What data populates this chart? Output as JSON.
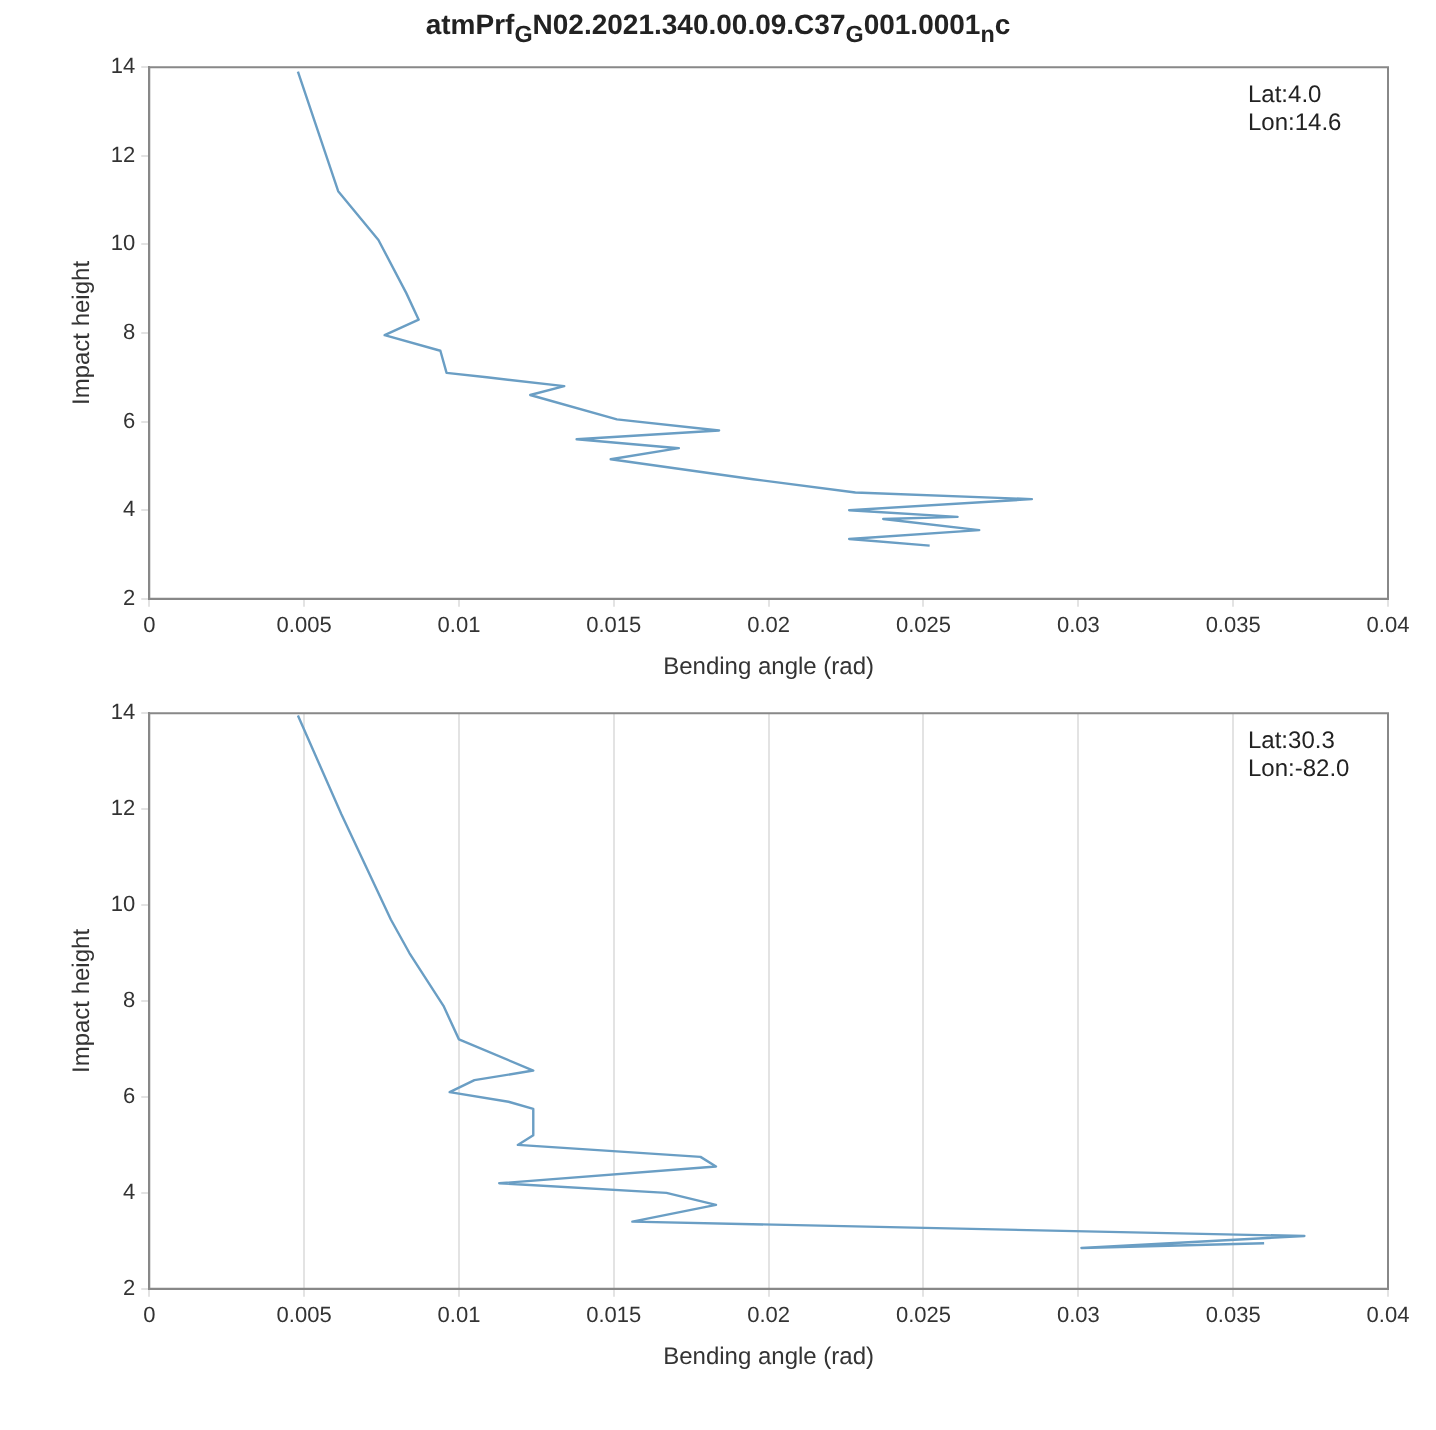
{
  "chart_data": [
    {
      "type": "line",
      "title": "atmPrf$_{G}$N02.2021.340.00.09.C37$_{G}$001.0001$_{n}$c",
      "xlabel": "Bending angle (rad)",
      "ylabel": "Impact height",
      "annotations": [
        "Lat:4.0",
        "Lon:14.6"
      ],
      "xlim": [
        0,
        0.04
      ],
      "xticks": [
        0,
        0.005,
        0.01,
        0.015,
        0.02,
        0.025,
        0.03,
        0.035,
        0.04
      ],
      "ylim": [
        2,
        14
      ],
      "yticks": [
        2,
        4,
        6,
        8,
        10,
        12,
        14
      ],
      "grid": false,
      "legend": false,
      "series": [
        {
          "color": "#6a9ec4",
          "x": [
            0.0048,
            0.0061,
            0.0074,
            0.0083,
            0.0087,
            0.0076,
            0.0094,
            0.0096,
            0.0109,
            0.0134,
            0.0123,
            0.0151,
            0.0184,
            0.0138,
            0.0171,
            0.0149,
            0.0195,
            0.0228,
            0.0285,
            0.0226,
            0.0261,
            0.0237,
            0.0268,
            0.0226,
            0.0252
          ],
          "values": [
            13.9,
            11.2,
            10.1,
            8.9,
            8.3,
            7.95,
            7.6,
            7.1,
            7.0,
            6.8,
            6.6,
            6.05,
            5.8,
            5.6,
            5.4,
            5.15,
            4.7,
            4.4,
            4.25,
            4.0,
            3.85,
            3.8,
            3.55,
            3.35,
            3.2
          ]
        }
      ]
    },
    {
      "type": "line",
      "xlabel": "Bending angle (rad)",
      "ylabel": "Impact height",
      "annotations": [
        "Lat:30.3",
        "Lon:-82.0"
      ],
      "xlim": [
        0,
        0.04
      ],
      "xticks": [
        0,
        0.005,
        0.01,
        0.015,
        0.02,
        0.025,
        0.03,
        0.035,
        0.04
      ],
      "ylim": [
        2,
        14
      ],
      "yticks": [
        2,
        4,
        6,
        8,
        10,
        12,
        14
      ],
      "grid": "x",
      "legend": false,
      "series": [
        {
          "color": "#6a9ec4",
          "x": [
            0.0048,
            0.0062,
            0.0078,
            0.0084,
            0.0095,
            0.01,
            0.0124,
            0.0105,
            0.0097,
            0.0116,
            0.0124,
            0.0124,
            0.0119,
            0.0178,
            0.0183,
            0.0113,
            0.0167,
            0.0183,
            0.0156,
            0.0373,
            0.0301,
            0.036
          ],
          "values": [
            13.95,
            11.9,
            9.7,
            9.0,
            7.9,
            7.2,
            6.55,
            6.35,
            6.1,
            5.9,
            5.75,
            5.2,
            5.0,
            4.75,
            4.55,
            4.2,
            4.0,
            3.75,
            3.4,
            3.1,
            2.85,
            2.95
          ]
        }
      ]
    }
  ]
}
